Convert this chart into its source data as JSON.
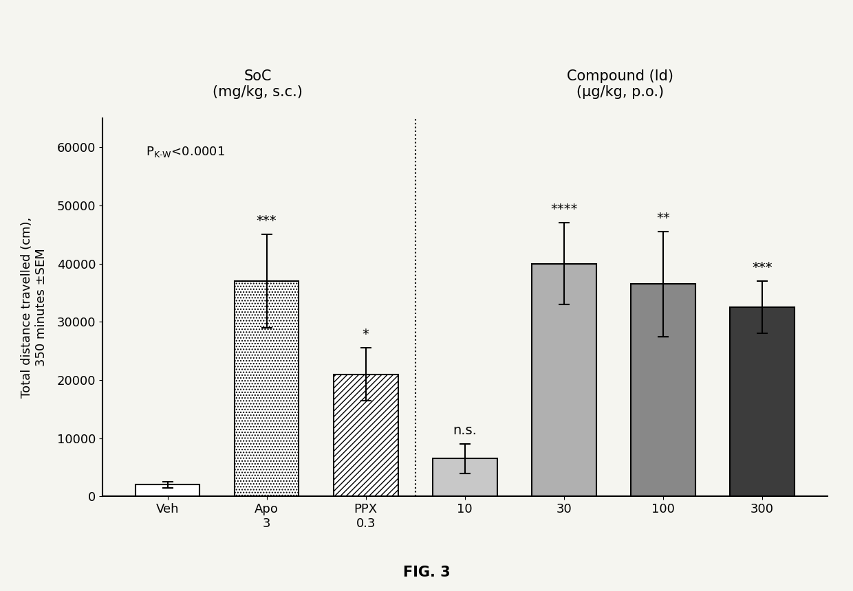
{
  "categories": [
    "Veh",
    "Apo\n3",
    "PPX\n0.3",
    "10",
    "30",
    "100",
    "300"
  ],
  "values": [
    2000,
    37000,
    21000,
    6500,
    40000,
    36500,
    32500
  ],
  "errors": [
    500,
    8000,
    4500,
    2500,
    7000,
    9000,
    4500
  ],
  "sig_labels": [
    "",
    "***",
    "*",
    "n.s.",
    "****",
    "**",
    "***"
  ],
  "bar_colors": [
    "#ffffff",
    "#ffffff",
    "#ffffff",
    "#c8c8c8",
    "#b0b0b0",
    "#888888",
    "#3c3c3c"
  ],
  "bar_hatch": [
    "",
    "....",
    "////",
    "",
    "",
    "",
    ""
  ],
  "edgecolors": [
    "#000000",
    "#000000",
    "#000000",
    "#000000",
    "#000000",
    "#000000",
    "#000000"
  ],
  "ylabel": "Total distance travelled (cm),\n350 minutes ±SEM",
  "ylim": [
    0,
    65000
  ],
  "yticks": [
    0,
    10000,
    20000,
    30000,
    40000,
    50000,
    60000
  ],
  "group1_label": "SoC\n(mg/kg, s.c.)",
  "group2_label": "Compound (ld)\n(μg/kg, p.o.)",
  "fig_label": "FIG. 3",
  "dotted_line_x": 2.5,
  "background_color": "#f5f5f0"
}
